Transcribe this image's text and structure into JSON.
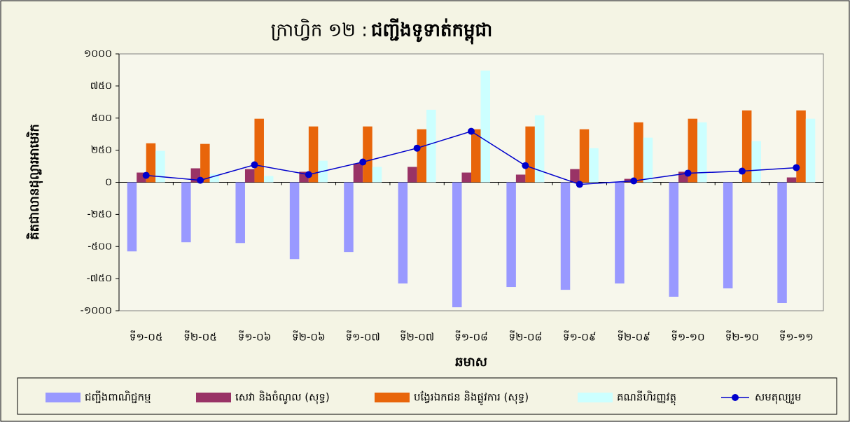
{
  "chart_data": {
    "type": "bar_line",
    "title": {
      "plain": "ក្រាហ្វិក ១២ :",
      "bold": "ជញ្ជីងទូទាត់កម្ពុជា"
    },
    "y_label": "គិតជាលានដុល្លារអាមេរិក",
    "x_label": "ឆមាស",
    "categories": [
      "ទី១-០៥",
      "ទី២-០៥",
      "ទី១-០៦",
      "ទី២-០៦",
      "ទី១-០៧",
      "ទី២-០៧",
      "ទី១-០៨",
      "ទី២-០៨",
      "ទី១-០៩",
      "ទី២-០៩",
      "ទី១-១០",
      "ទី២-១០",
      "ទី១-១១"
    ],
    "series": [
      {
        "name": "ជញ្ជីងពាណិជ្ជកម្ម",
        "color": "#9999ff",
        "kind": "bar",
        "values": [
          -538,
          -467,
          -473,
          -598,
          -543,
          -788,
          -973,
          -815,
          -837,
          -788,
          -891,
          -826,
          -940
        ]
      },
      {
        "name": "សេវា និងចំណូល (សុទ្ធ)",
        "color": "#993366",
        "kind": "bar",
        "values": [
          76,
          109,
          103,
          82,
          147,
          120,
          76,
          60,
          103,
          27,
          82,
          0,
          38
        ]
      },
      {
        "name": "បង្វែរឯកជន និងផ្លូវការ (សុទ្ធ)",
        "color": "#e8650a",
        "kind": "bar",
        "values": [
          304,
          299,
          495,
          435,
          435,
          413,
          413,
          435,
          413,
          467,
          495,
          560,
          560
        ]
      },
      {
        "name": "គណនីហិរញ្ញវត្ថុ",
        "color": "#ccffff",
        "kind": "bar",
        "values": [
          245,
          65,
          49,
          168,
          120,
          565,
          870,
          522,
          266,
          348,
          467,
          321,
          495
        ]
      },
      {
        "name": "សមតុល្យរួម",
        "color": "#0000cc",
        "kind": "line",
        "values": [
          54,
          16,
          136,
          60,
          158,
          266,
          397,
          130,
          -16,
          11,
          71,
          87,
          114
        ]
      }
    ],
    "ylim": [
      -1000,
      1000
    ],
    "yticks": [
      {
        "value": 1000,
        "label": "១០០០"
      },
      {
        "value": 750,
        "label": "៧៥០"
      },
      {
        "value": 500,
        "label": "៥០០"
      },
      {
        "value": 250,
        "label": "២៥០"
      },
      {
        "value": 0,
        "label": "០"
      },
      {
        "value": -250,
        "label": "-២៥០"
      },
      {
        "value": -500,
        "label": "-៥០០"
      },
      {
        "value": -750,
        "label": "-៧៥០"
      },
      {
        "value": -1000,
        "label": "-១០០០"
      }
    ],
    "grid": false,
    "legend": "bottom"
  }
}
